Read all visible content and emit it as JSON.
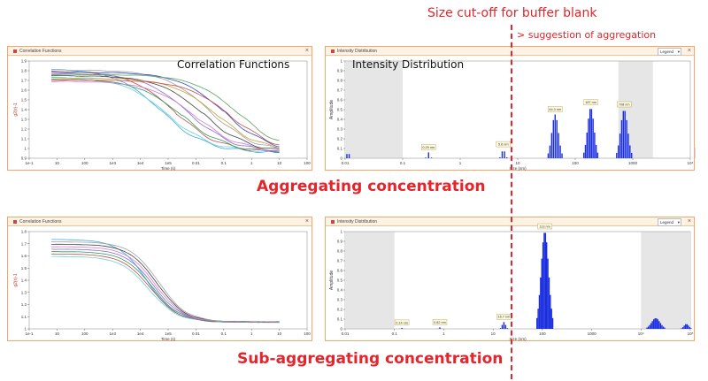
{
  "annotations": {
    "cutoff_title": "Size cut-off for buffer blank",
    "cutoff_note": "> suggestion of aggregation"
  },
  "captions": {
    "top": "Aggregating concentration",
    "bottom": "Sub-aggregating concentration"
  },
  "panels": {
    "corr_top": {
      "window_title": "Correlation Functions",
      "overlay_label": "Correlation Functions",
      "y_label": "g2(τ)-1",
      "x_label": "Time (s)",
      "y_ticks": [
        "1.9",
        "1.8",
        "1.7",
        "1.6",
        "1.5",
        "1.4",
        "1.3",
        "1.2",
        "1.1",
        "1",
        "0.9"
      ],
      "x_ticks": [
        "1e-1",
        "10",
        "100",
        "1e3",
        "1e4",
        "1e5",
        "0.01",
        "0.1",
        "1",
        "10",
        "100"
      ]
    },
    "int_top": {
      "window_title": "Intensity Distribution",
      "overlay_label": "Intensity Distribution",
      "legend_label": "Legend",
      "y_label": "Amplitude",
      "x_label": "Size (nm)",
      "y_ticks": [
        "1",
        "0.9",
        "0.8",
        "0.7",
        "0.6",
        "0.5",
        "0.4",
        "0.3",
        "0.2",
        "0.1",
        "0"
      ],
      "x_ticks": [
        "0.01",
        "0.1",
        "1",
        "10",
        "100",
        "1000",
        "10⁴"
      ],
      "peak_labels": [
        "0.29 nm",
        "5.6 nm",
        "44.3 nm",
        "187 nm",
        "708 nm"
      ]
    },
    "corr_bottom": {
      "window_title": "Correlation Functions",
      "y_label": "g2(τ)-1",
      "x_label": "Time (s)",
      "y_ticks": [
        "1.8",
        "1.7",
        "1.6",
        "1.5",
        "1.4",
        "1.3",
        "1.2",
        "1.1",
        "1"
      ],
      "x_ticks": [
        "1e-1",
        "10",
        "100",
        "1e3",
        "1e4",
        "1e5",
        "0.01",
        "0.1",
        "1",
        "10",
        "100"
      ]
    },
    "int_bottom": {
      "window_title": "Intensity Distribution",
      "legend_label": "Legend",
      "y_label": "Amplitude",
      "x_label": "Size (nm)",
      "y_ticks": [
        "1",
        "0.9",
        "0.8",
        "0.7",
        "0.6",
        "0.5",
        "0.4",
        "0.3",
        "0.2",
        "0.1",
        "0"
      ],
      "x_ticks": [
        "0.01",
        "0.1",
        "1",
        "10",
        "100",
        "1000",
        "10⁴",
        "10⁵"
      ],
      "peak_labels": [
        "0.14 nm",
        "0.82 nm",
        "16.7 nm",
        "113 nm"
      ]
    }
  },
  "colors": {
    "accent_red": "#e5242b",
    "panel_border": "#f0a868",
    "bar_blue": "#1a2ee0",
    "grey_band": "#e6e6e6"
  }
}
